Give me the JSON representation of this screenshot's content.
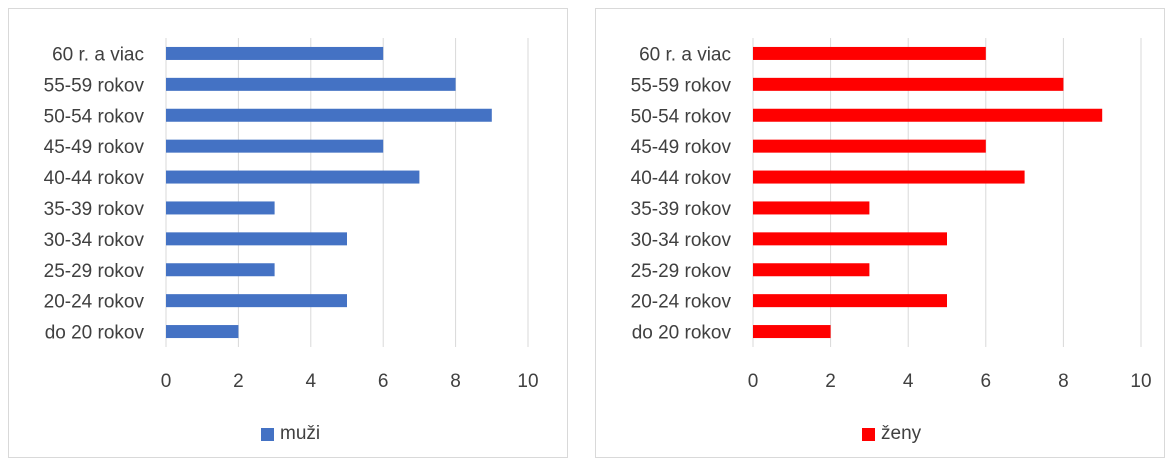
{
  "chart_data": [
    {
      "type": "bar",
      "orientation": "horizontal",
      "categories": [
        "60 r. a viac",
        "55-59 rokov",
        "50-54 rokov",
        "45-49 rokov",
        "40-44 rokov",
        "35-39 rokov",
        "30-34 rokov",
        "25-29 rokov",
        "20-24 rokov",
        "do 20 rokov"
      ],
      "series": [
        {
          "name": "muži",
          "values": [
            6,
            8,
            9,
            6,
            7,
            3,
            5,
            3,
            5,
            2
          ],
          "color": "#4472c4"
        }
      ],
      "xlim": [
        0,
        10
      ],
      "xticks": [
        0,
        2,
        4,
        6,
        8,
        10
      ],
      "grid": "vertical",
      "legend_position": "bottom",
      "title": "",
      "xlabel": "",
      "ylabel": ""
    },
    {
      "type": "bar",
      "orientation": "horizontal",
      "categories": [
        "60 r. a viac",
        "55-59 rokov",
        "50-54 rokov",
        "45-49 rokov",
        "40-44 rokov",
        "35-39 rokov",
        "30-34 rokov",
        "25-29 rokov",
        "20-24 rokov",
        "do 20 rokov"
      ],
      "series": [
        {
          "name": "ženy",
          "values": [
            6,
            8,
            9,
            6,
            7,
            3,
            5,
            3,
            5,
            2
          ],
          "color": "#ff0000"
        }
      ],
      "xlim": [
        0,
        10
      ],
      "xticks": [
        0,
        2,
        4,
        6,
        8,
        10
      ],
      "grid": "vertical",
      "legend_position": "bottom",
      "title": "",
      "xlabel": "",
      "ylabel": ""
    }
  ]
}
